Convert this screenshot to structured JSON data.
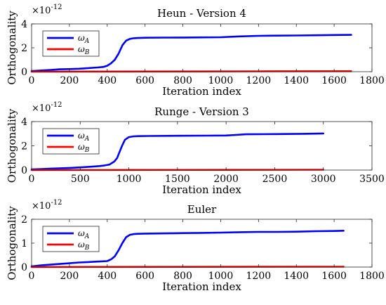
{
  "chart_data": [
    {
      "type": "line",
      "title": "Heun - Version 4",
      "xlabel": "Iteration index",
      "ylabel": "Orthogonality",
      "exponent_base": "×10",
      "exponent_power": "-12",
      "xlim": [
        0,
        1800
      ],
      "ylim": [
        0,
        4
      ],
      "xticks": [
        "0",
        "200",
        "400",
        "600",
        "800",
        "1000",
        "1200",
        "1400",
        "1600",
        "1800"
      ],
      "yticks": [
        "0",
        "2",
        "4"
      ],
      "legend": {
        "position": "top-left"
      },
      "series": [
        {
          "name": "ω",
          "name_sub": "A",
          "color": "#0000ff",
          "x": [
            0,
            50,
            100,
            150,
            200,
            250,
            300,
            350,
            380,
            400,
            420,
            440,
            460,
            480,
            500,
            520,
            540,
            560,
            600,
            700,
            800,
            900,
            1000,
            1100,
            1200,
            1300,
            1400,
            1500,
            1600,
            1690
          ],
          "y": [
            0.05,
            0.1,
            0.15,
            0.2,
            0.22,
            0.25,
            0.3,
            0.35,
            0.4,
            0.5,
            0.7,
            1.0,
            1.5,
            2.2,
            2.6,
            2.75,
            2.8,
            2.82,
            2.84,
            2.85,
            2.86,
            2.87,
            2.88,
            2.95,
            3.0,
            3.02,
            3.03,
            3.05,
            3.07,
            3.08
          ]
        },
        {
          "name": "ω",
          "name_sub": "B",
          "color": "#ff0000",
          "x": [
            0,
            400,
            800,
            1200,
            1690
          ],
          "y": [
            0.0,
            0.01,
            0.02,
            0.03,
            0.04
          ]
        }
      ]
    },
    {
      "type": "line",
      "title": "Runge - Version 3",
      "xlabel": "Iteration index",
      "ylabel": "Orthogonality",
      "exponent_base": "×10",
      "exponent_power": "-12",
      "xlim": [
        0,
        3500
      ],
      "ylim": [
        0,
        4
      ],
      "xticks": [
        "0",
        "500",
        "1000",
        "1500",
        "2000",
        "2500",
        "3000",
        "3500"
      ],
      "yticks": [
        "0",
        "2",
        "4"
      ],
      "legend": {
        "position": "top-left"
      },
      "series": [
        {
          "name": "ω",
          "name_sub": "A",
          "color": "#0000ff",
          "x": [
            0,
            100,
            200,
            300,
            400,
            500,
            600,
            700,
            750,
            800,
            850,
            880,
            900,
            930,
            960,
            1000,
            1050,
            1100,
            1200,
            1500,
            1800,
            2000,
            2100,
            2200,
            2500,
            2800,
            3000
          ],
          "y": [
            0.05,
            0.08,
            0.12,
            0.15,
            0.18,
            0.22,
            0.27,
            0.33,
            0.38,
            0.45,
            0.7,
            1.0,
            1.4,
            2.0,
            2.5,
            2.72,
            2.78,
            2.8,
            2.81,
            2.83,
            2.84,
            2.85,
            2.9,
            2.95,
            2.97,
            2.99,
            3.02
          ]
        },
        {
          "name": "ω",
          "name_sub": "B",
          "color": "#ff0000",
          "x": [
            0,
            1000,
            2000,
            3000
          ],
          "y": [
            0.0,
            0.01,
            0.02,
            0.03
          ]
        }
      ]
    },
    {
      "type": "line",
      "title": "Euler",
      "xlabel": "Iteration index",
      "ylabel": "Orthogonality",
      "exponent_base": "×10",
      "exponent_power": "-12",
      "xlim": [
        0,
        1800
      ],
      "ylim": [
        0,
        2
      ],
      "xticks": [
        "0",
        "200",
        "400",
        "600",
        "800",
        "1000",
        "1200",
        "1400",
        "1600",
        "1800"
      ],
      "yticks": [
        "0",
        "1",
        "2"
      ],
      "legend": {
        "position": "top-left"
      },
      "series": [
        {
          "name": "ω",
          "name_sub": "A",
          "color": "#0000ff",
          "x": [
            0,
            50,
            100,
            150,
            200,
            250,
            300,
            350,
            400,
            420,
            440,
            460,
            480,
            500,
            520,
            540,
            560,
            600,
            700,
            800,
            900,
            1000,
            1100,
            1200,
            1300,
            1400,
            1500,
            1600,
            1650
          ],
          "y": [
            0.03,
            0.07,
            0.1,
            0.13,
            0.16,
            0.19,
            0.21,
            0.23,
            0.25,
            0.32,
            0.45,
            0.7,
            1.0,
            1.25,
            1.35,
            1.38,
            1.39,
            1.4,
            1.41,
            1.42,
            1.43,
            1.44,
            1.46,
            1.47,
            1.47,
            1.48,
            1.5,
            1.51,
            1.52
          ]
        },
        {
          "name": "ω",
          "name_sub": "B",
          "color": "#ff0000",
          "x": [
            0,
            400,
            800,
            1200,
            1650
          ],
          "y": [
            0.0,
            0.005,
            0.01,
            0.012,
            0.015
          ]
        }
      ]
    }
  ]
}
